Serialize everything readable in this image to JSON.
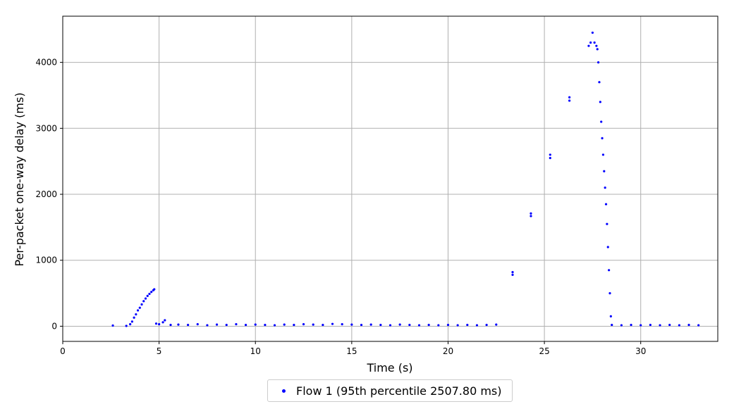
{
  "chart_data": {
    "type": "scatter",
    "xlabel": "Time (s)",
    "ylabel": "Per-packet one-way delay (ms)",
    "xlim": [
      0,
      34
    ],
    "ylim": [
      -230,
      4700
    ],
    "xticks": [
      0,
      5,
      10,
      15,
      20,
      25,
      30
    ],
    "yticks": [
      0,
      1000,
      2000,
      3000,
      4000
    ],
    "grid": true,
    "legend_position": "below",
    "series": [
      {
        "name": "Flow 1 (95th percentile 2507.80 ms)",
        "color": "#0000ff",
        "marker": "dot",
        "points": [
          [
            2.6,
            10
          ],
          [
            3.3,
            5
          ],
          [
            3.5,
            30
          ],
          [
            3.6,
            70
          ],
          [
            3.7,
            130
          ],
          [
            3.8,
            180
          ],
          [
            3.9,
            240
          ],
          [
            4.0,
            280
          ],
          [
            4.1,
            330
          ],
          [
            4.2,
            380
          ],
          [
            4.3,
            420
          ],
          [
            4.4,
            460
          ],
          [
            4.5,
            490
          ],
          [
            4.6,
            520
          ],
          [
            4.7,
            545
          ],
          [
            4.75,
            560
          ],
          [
            4.85,
            40
          ],
          [
            5.0,
            30
          ],
          [
            5.2,
            60
          ],
          [
            5.3,
            90
          ],
          [
            5.6,
            20
          ],
          [
            6.0,
            25
          ],
          [
            6.5,
            20
          ],
          [
            7.0,
            30
          ],
          [
            7.5,
            15
          ],
          [
            8.0,
            25
          ],
          [
            8.5,
            20
          ],
          [
            9.0,
            30
          ],
          [
            9.5,
            20
          ],
          [
            10.0,
            25
          ],
          [
            10.5,
            20
          ],
          [
            11.0,
            15
          ],
          [
            11.5,
            25
          ],
          [
            12.0,
            20
          ],
          [
            12.5,
            30
          ],
          [
            13.0,
            25
          ],
          [
            13.5,
            20
          ],
          [
            14.0,
            35
          ],
          [
            14.5,
            30
          ],
          [
            15.0,
            25
          ],
          [
            15.5,
            20
          ],
          [
            16.0,
            25
          ],
          [
            16.5,
            20
          ],
          [
            17.0,
            15
          ],
          [
            17.5,
            25
          ],
          [
            18.0,
            20
          ],
          [
            18.5,
            15
          ],
          [
            19.0,
            20
          ],
          [
            19.5,
            15
          ],
          [
            20.0,
            20
          ],
          [
            20.5,
            15
          ],
          [
            21.0,
            20
          ],
          [
            21.5,
            15
          ],
          [
            22.0,
            20
          ],
          [
            22.5,
            25
          ],
          [
            23.35,
            780
          ],
          [
            23.35,
            820
          ],
          [
            24.3,
            1670
          ],
          [
            24.3,
            1710
          ],
          [
            25.3,
            2550
          ],
          [
            25.3,
            2600
          ],
          [
            26.3,
            3420
          ],
          [
            26.3,
            3470
          ],
          [
            27.3,
            4250
          ],
          [
            27.4,
            4300
          ],
          [
            27.5,
            4450
          ],
          [
            27.6,
            4300
          ],
          [
            27.7,
            4250
          ],
          [
            27.75,
            4200
          ],
          [
            27.8,
            4000
          ],
          [
            27.85,
            3700
          ],
          [
            27.9,
            3400
          ],
          [
            27.95,
            3100
          ],
          [
            28.0,
            2850
          ],
          [
            28.05,
            2600
          ],
          [
            28.1,
            2350
          ],
          [
            28.15,
            2100
          ],
          [
            28.2,
            1850
          ],
          [
            28.25,
            1550
          ],
          [
            28.3,
            1200
          ],
          [
            28.35,
            850
          ],
          [
            28.4,
            500
          ],
          [
            28.45,
            150
          ],
          [
            28.5,
            20
          ],
          [
            29.0,
            15
          ],
          [
            29.5,
            20
          ],
          [
            30.0,
            15
          ],
          [
            30.5,
            20
          ],
          [
            31.0,
            15
          ],
          [
            31.5,
            20
          ],
          [
            32.0,
            15
          ],
          [
            32.5,
            20
          ],
          [
            33.0,
            15
          ]
        ]
      }
    ]
  }
}
